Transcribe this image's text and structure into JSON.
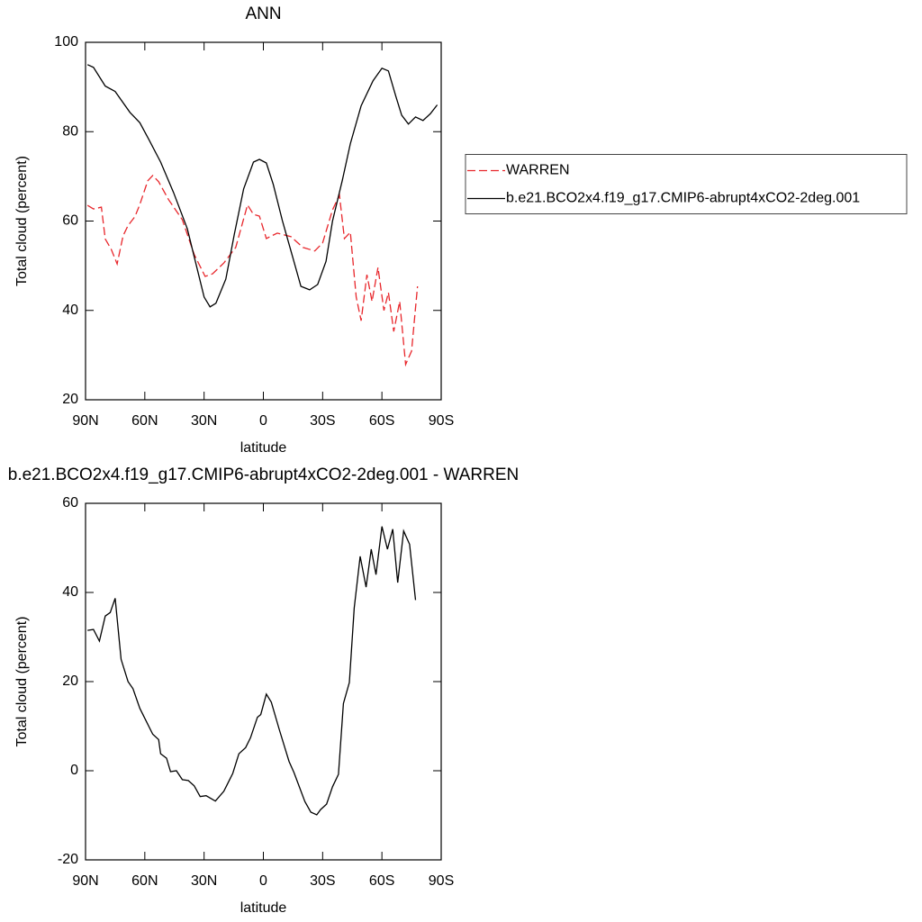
{
  "chart_data": [
    {
      "type": "line",
      "title": "ANN",
      "xlabel": "latitude",
      "ylabel": "Total cloud (percent)",
      "xlim": [
        90,
        -90
      ],
      "xticks": [
        {
          "value": 90,
          "label": "90N"
        },
        {
          "value": 60,
          "label": "60N"
        },
        {
          "value": 30,
          "label": "30N"
        },
        0,
        {
          "value": -30,
          "label": "30S"
        },
        {
          "value": -60,
          "label": "60S"
        },
        {
          "value": -90,
          "label": "90S"
        }
      ],
      "ylim": [
        20,
        100
      ],
      "yticks": [
        20,
        40,
        60,
        80,
        100
      ],
      "legend": "right",
      "series": [
        {
          "name": "WARREN",
          "color": "#e8262b",
          "dashed": true,
          "x": [
            89,
            86,
            82,
            80,
            77,
            74,
            71,
            68.5,
            65,
            62.5,
            58.5,
            56,
            53,
            48,
            41,
            35,
            29.5,
            25.7,
            20,
            14,
            8,
            5,
            2,
            -1.5,
            -7,
            -14,
            -20,
            -26,
            -30,
            -35,
            -38.5,
            -41,
            -44,
            -47,
            -49.5,
            -52.4,
            -55,
            -58,
            -61,
            -63.3,
            -66,
            -69,
            -72,
            -75,
            -78
          ],
          "values": [
            63.5,
            62.7,
            63.1,
            56,
            53.7,
            50.4,
            56.7,
            59,
            61,
            63.7,
            69,
            70.2,
            68.8,
            64.8,
            60.3,
            52.5,
            47.6,
            48.2,
            50.6,
            54.1,
            63.6,
            61.5,
            61.1,
            56.1,
            57.3,
            56.5,
            54.1,
            53.3,
            55.1,
            62.5,
            65.8,
            56.1,
            57.5,
            43,
            37.7,
            48,
            42,
            49.6,
            40,
            44,
            35.3,
            42,
            27.9,
            30.9,
            45.4
          ]
        },
        {
          "name": "b.e21.BCO2x4.f19_g17.CMIP6-abrupt4xCO2-2deg.001",
          "color": "#000000",
          "dashed": false,
          "x": [
            89,
            86,
            80,
            75,
            67.5,
            62.5,
            58,
            52,
            45.5,
            38.5,
            35,
            30,
            27,
            24,
            19,
            14.7,
            10,
            5,
            2,
            -1.5,
            -5,
            -9.6,
            -15,
            -19,
            -23.4,
            -27.5,
            -31.7,
            -35,
            -40,
            -44,
            -49.5,
            -55.5,
            -60,
            -63.3,
            -67,
            -70,
            -73.4,
            -77,
            -80.8,
            -84.5,
            -88
          ],
          "values": [
            95,
            94.4,
            90.2,
            89,
            84.3,
            82,
            78.3,
            73.2,
            66.4,
            58.3,
            52,
            43,
            40.8,
            41.6,
            47,
            57,
            67.2,
            73.2,
            73.8,
            73,
            68.2,
            60.1,
            51.7,
            45.4,
            44.6,
            45.8,
            51,
            60,
            69.2,
            77.3,
            85.8,
            91.4,
            94.2,
            93.6,
            88,
            83.7,
            81.7,
            83.3,
            82.5,
            84,
            86
          ]
        }
      ]
    },
    {
      "type": "line",
      "title": "b.e21.BCO2x4.f19_g17.CMIP6-abrupt4xCO2-2deg.001 - WARREN",
      "xlabel": "latitude",
      "ylabel": "Total cloud (percent)",
      "xlim": [
        90,
        -90
      ],
      "xticks": [
        {
          "value": 90,
          "label": "90N"
        },
        {
          "value": 60,
          "label": "60N"
        },
        {
          "value": 30,
          "label": "30N"
        },
        0,
        {
          "value": -30,
          "label": "30S"
        },
        {
          "value": -60,
          "label": "60S"
        },
        {
          "value": -90,
          "label": "90S"
        }
      ],
      "ylim": [
        -20,
        60
      ],
      "yticks": [
        -20,
        0,
        20,
        40,
        60
      ],
      "series": [
        {
          "color": "#000000",
          "dashed": false,
          "x": [
            89,
            86,
            83,
            80,
            77.5,
            75,
            72,
            68.5,
            66,
            62.5,
            56,
            53,
            52,
            49,
            47,
            44,
            41,
            38,
            35,
            32,
            29,
            24.3,
            20,
            15.5,
            12.4,
            9,
            6.5,
            3,
            1.3,
            -1.5,
            -4,
            -8,
            -13,
            -15.5,
            -21,
            -24,
            -27,
            -29,
            -32,
            -35,
            -38,
            -40.5,
            -43.5,
            -46,
            -49,
            -52,
            -54.6,
            -57,
            -60,
            -62.8,
            -65.5,
            -68,
            -71,
            -74,
            -77
          ],
          "values": [
            31.5,
            31.7,
            29.1,
            34.7,
            35.5,
            38.7,
            25,
            20,
            18.4,
            14,
            8.2,
            7,
            3.8,
            2.8,
            -0.2,
            0,
            -2,
            -2.2,
            -3.4,
            -5.8,
            -5.6,
            -6.8,
            -4.6,
            -0.6,
            3.8,
            5.2,
            7.4,
            12,
            12.6,
            17.2,
            15.4,
            9.3,
            2.1,
            -0.4,
            -6.9,
            -9.3,
            -9.9,
            -8.7,
            -7.5,
            -3.6,
            -0.8,
            15.1,
            19.8,
            36.5,
            48.1,
            41.2,
            49.7,
            44,
            54.8,
            49.7,
            54.2,
            42.2,
            53.8,
            50.8,
            38.3
          ]
        }
      ]
    }
  ]
}
